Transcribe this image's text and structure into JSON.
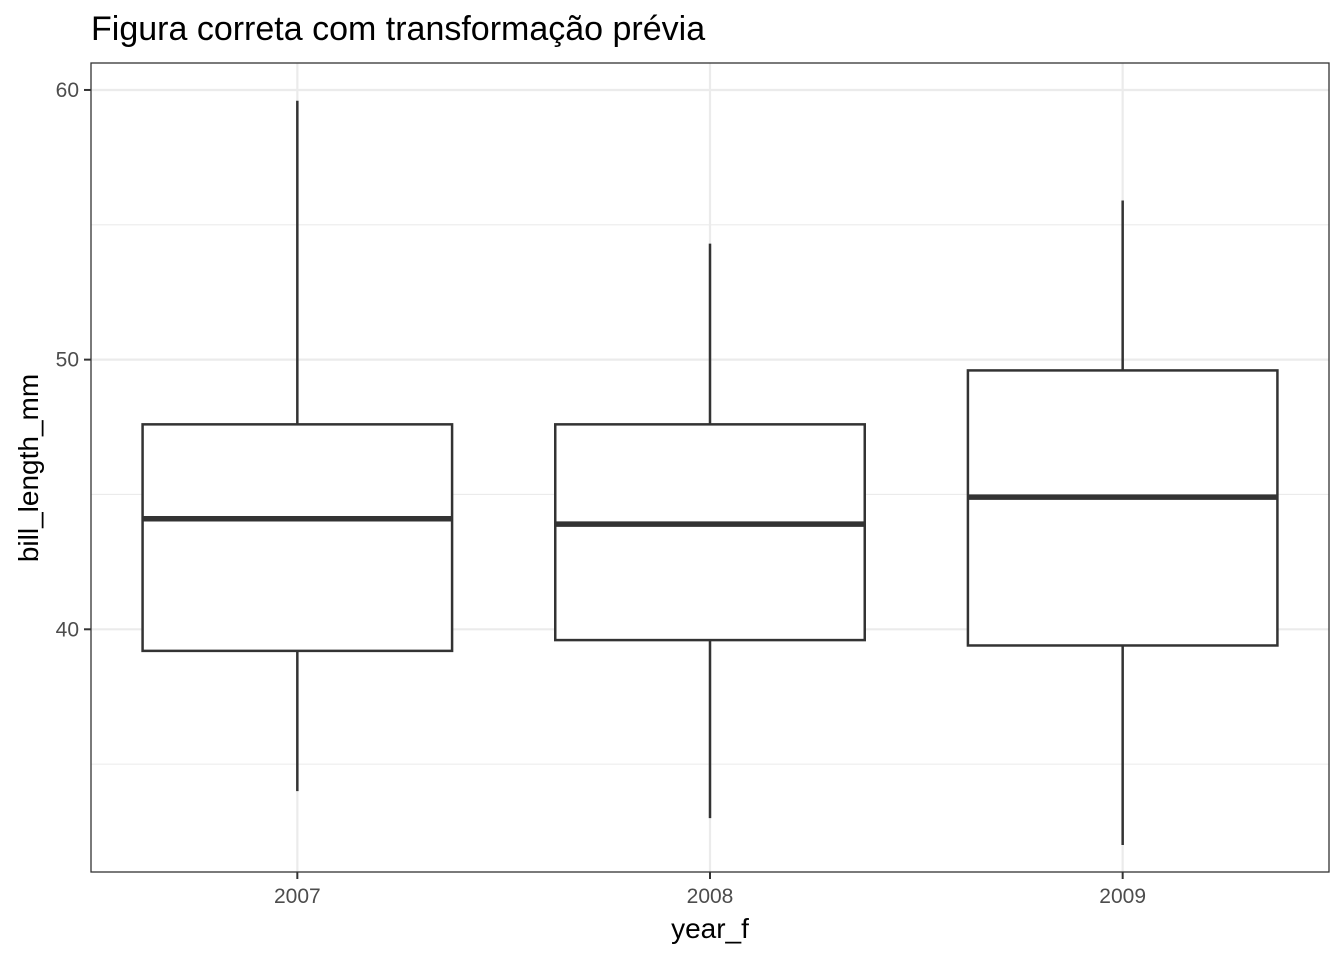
{
  "chart_data": {
    "type": "boxplot",
    "title": "Figura correta com transformação prévia",
    "xlabel": "year_f",
    "ylabel": "bill_length_mm",
    "categories": [
      "2007",
      "2008",
      "2009"
    ],
    "ylim": [
      31.0,
      61.0
    ],
    "yticks": [
      40,
      50,
      60
    ],
    "yticks_labels": [
      "40",
      "50",
      "60"
    ],
    "grid": true,
    "boxes": [
      {
        "category": "2007",
        "min": 34.0,
        "q1": 39.2,
        "median": 44.1,
        "q3": 47.6,
        "max": 59.6
      },
      {
        "category": "2008",
        "min": 33.0,
        "q1": 39.6,
        "median": 43.9,
        "q3": 47.6,
        "max": 54.3
      },
      {
        "category": "2009",
        "min": 32.0,
        "q1": 39.4,
        "median": 44.9,
        "q3": 49.6,
        "max": 55.9
      }
    ],
    "colors": {
      "line": "#333333",
      "fill": "#ffffff",
      "grid": "#ebebeb"
    }
  }
}
